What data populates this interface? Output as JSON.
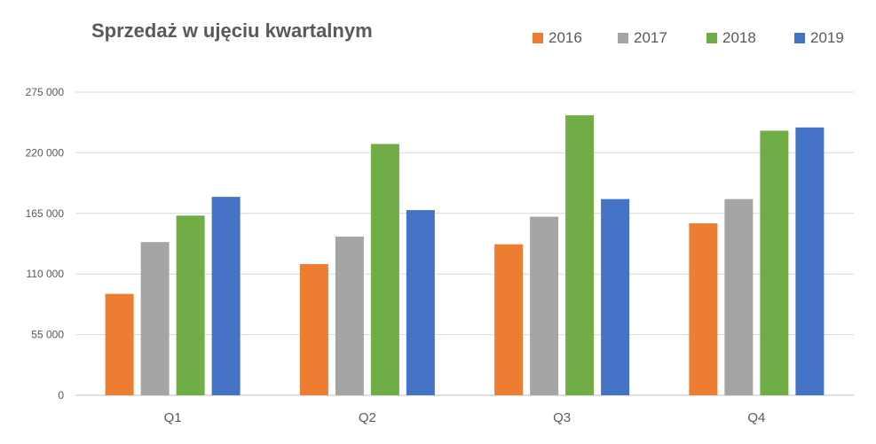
{
  "chart_data": {
    "type": "bar",
    "title": "Sprzedaż w ujęciu kwartalnym",
    "xlabel": "",
    "ylabel": "",
    "categories": [
      "Q1",
      "Q2",
      "Q3",
      "Q4"
    ],
    "ylim": [
      0,
      275000
    ],
    "yticks": [
      0,
      55000,
      110000,
      165000,
      220000,
      275000
    ],
    "ytick_labels": [
      "0",
      "55 000",
      "110 000",
      "165 000",
      "220 000",
      "275 000"
    ],
    "grid": true,
    "legend_position": "top-right",
    "series": [
      {
        "name": "2016",
        "color": "#ED7D31",
        "values": [
          92000,
          119000,
          137000,
          156000
        ]
      },
      {
        "name": "2017",
        "color": "#A5A5A5",
        "values": [
          139000,
          144000,
          162000,
          178000
        ]
      },
      {
        "name": "2018",
        "color": "#70AD47",
        "values": [
          163000,
          228000,
          254000,
          240000
        ]
      },
      {
        "name": "2019",
        "color": "#4472C4",
        "values": [
          180000,
          168000,
          178000,
          243000
        ]
      }
    ]
  }
}
